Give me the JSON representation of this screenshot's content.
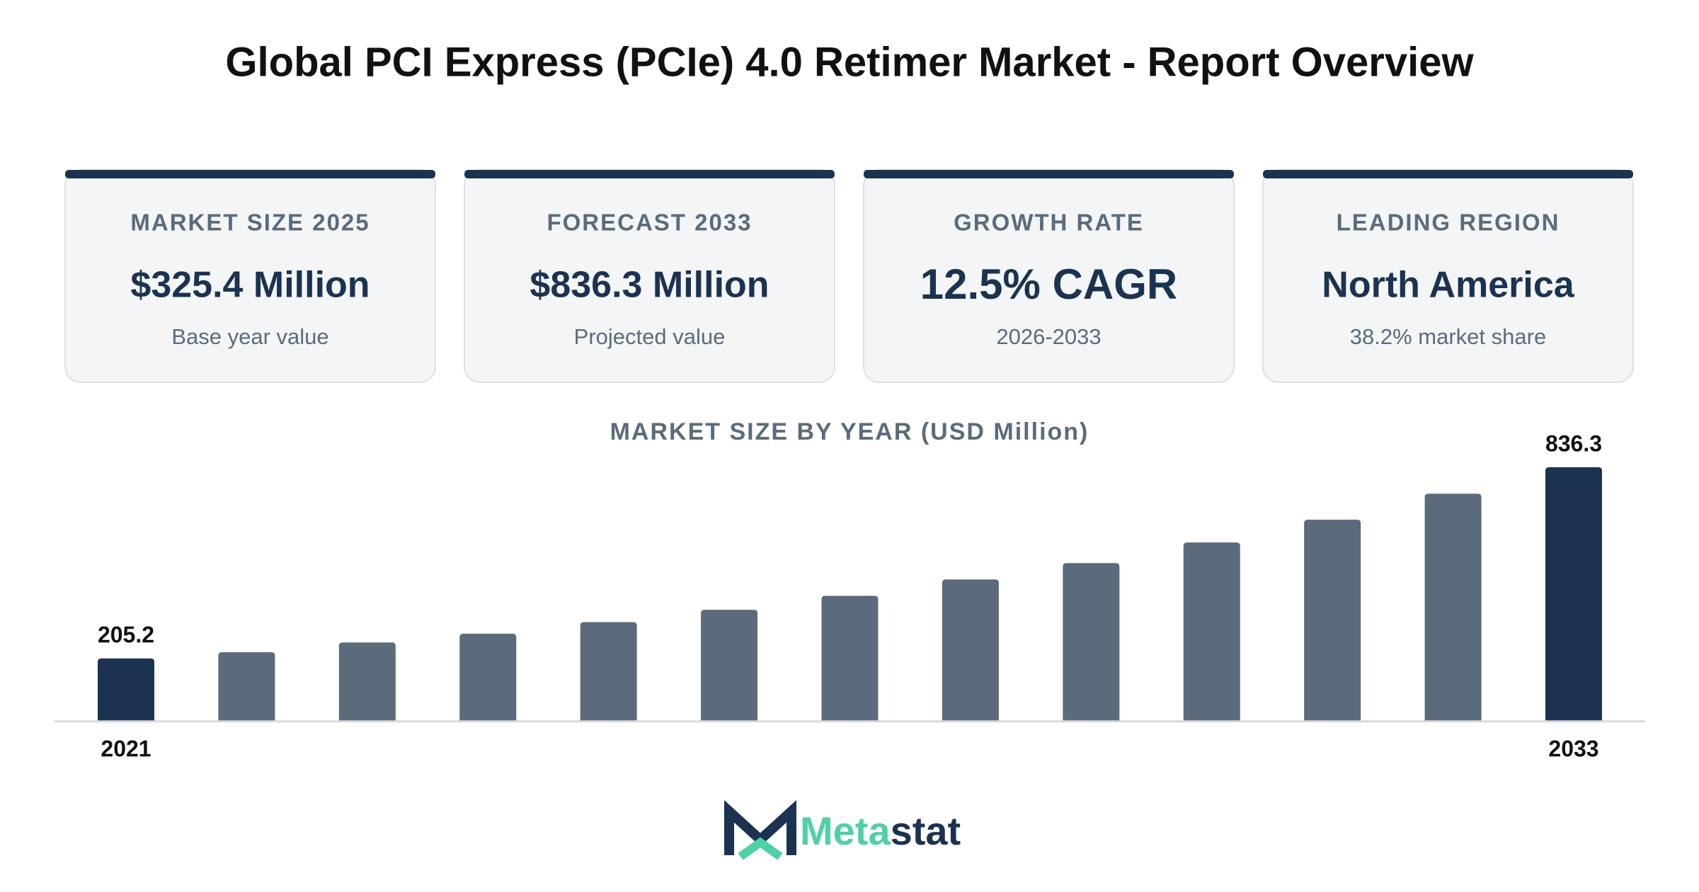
{
  "title": "Global PCI Express (PCIe) 4.0 Retimer Market - Report Overview",
  "cards": [
    {
      "label": "MARKET SIZE 2025",
      "value": "$325.4 Million",
      "note": "Base year value"
    },
    {
      "label": "FORECAST 2033",
      "value": "$836.3 Million",
      "note": "Projected value"
    },
    {
      "label": "GROWTH RATE",
      "value": "12.5% CAGR",
      "note": "2026-2033"
    },
    {
      "label": "LEADING REGION",
      "value": "North America",
      "note": "38.2% market share"
    }
  ],
  "chart_data": {
    "type": "bar",
    "title": "MARKET SIZE BY YEAR (USD Million)",
    "categories": [
      "2021",
      null,
      null,
      null,
      null,
      null,
      null,
      null,
      null,
      null,
      null,
      null,
      "2033"
    ],
    "values": [
      205.2,
      226,
      258,
      287,
      325.4,
      366,
      412,
      466,
      520,
      588,
      663,
      749,
      836.3
    ],
    "value_labels": [
      "205.2",
      null,
      null,
      null,
      null,
      null,
      null,
      null,
      null,
      null,
      null,
      null,
      "836.3"
    ],
    "colors": [
      "#1b3350",
      "#5b6b7b",
      "#5b6b7b",
      "#5b6b7b",
      "#5b6b7b",
      "#5b6b7b",
      "#5b6b7b",
      "#5b6b7b",
      "#5b6b7b",
      "#5b6b7b",
      "#5b6b7b",
      "#5b6b7b",
      "#1b3350"
    ],
    "ylim": [
      0,
      836.3
    ]
  },
  "logo": {
    "parts": [
      "Meta",
      "stat"
    ]
  }
}
